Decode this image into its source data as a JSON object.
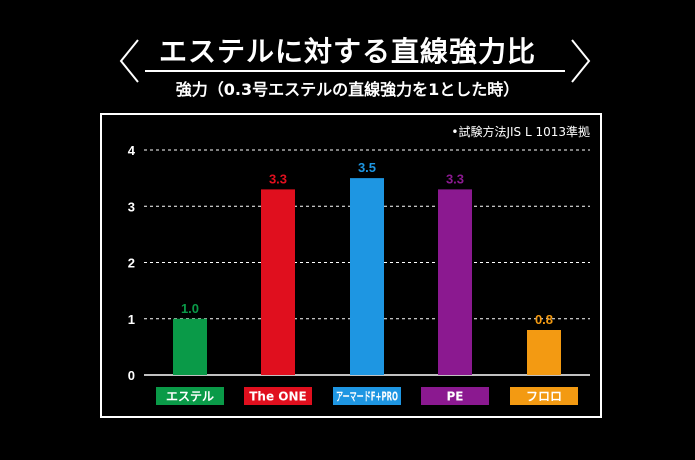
{
  "header": {
    "title": "エステルに対する直線強力比",
    "subtitle": "強力（0.3号エステルの直線強力を1とした時）"
  },
  "note": "•試験方法JIS L 1013準拠",
  "chart_data": {
    "type": "bar",
    "title": "エステルに対する直線強力比",
    "subtitle": "強力（0.3号エステルの直線強力を1とした時）",
    "categories": [
      "エステル",
      "The ONE",
      "アーマードF+PRO",
      "PE",
      "フロロ"
    ],
    "values": [
      1.0,
      3.3,
      3.5,
      3.3,
      0.8
    ],
    "value_labels": [
      "1.0",
      "3.3",
      "3.5",
      "3.3",
      "0.8"
    ],
    "colors": [
      "#0a9a48",
      "#e00f1e",
      "#1e96e2",
      "#8b1990",
      "#f39a12"
    ],
    "ylim": [
      0,
      4
    ],
    "yticks": [
      "0",
      "1",
      "2",
      "3",
      "4"
    ],
    "grid": true,
    "xlabel": "",
    "ylabel": ""
  }
}
